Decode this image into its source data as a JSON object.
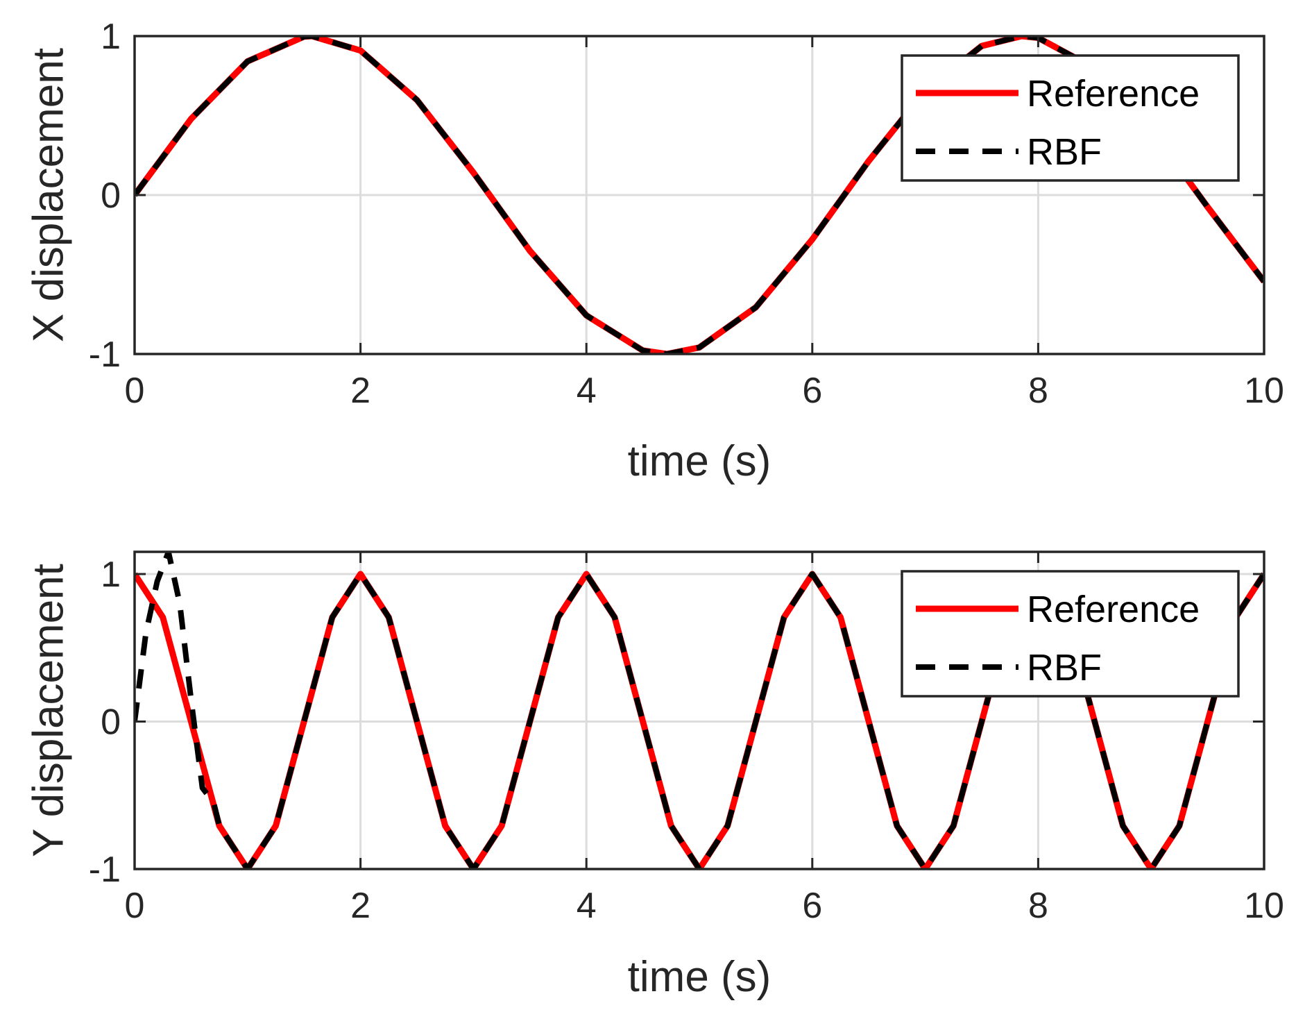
{
  "chart_data": [
    {
      "type": "line",
      "xlabel": "time (s)",
      "ylabel": "X displacement",
      "xlim": [
        0,
        10
      ],
      "ylim": [
        -1,
        1
      ],
      "xticks": [
        "0",
        "2",
        "4",
        "6",
        "8",
        "10"
      ],
      "yticks": [
        "-1",
        "0",
        "1"
      ],
      "grid": true,
      "legend": "top-right",
      "series": [
        {
          "name": "Reference",
          "color": "#ff0000",
          "style": "solid",
          "x": [
            0,
            0.5,
            1,
            1.5,
            1.571,
            2,
            2.5,
            3,
            3.5,
            4,
            4.5,
            4.712,
            5,
            5.5,
            6,
            6.5,
            7,
            7.5,
            7.854,
            8,
            8.5,
            9,
            9.5,
            10
          ],
          "y": [
            0,
            0.479,
            0.841,
            0.997,
            1,
            0.909,
            0.598,
            0.141,
            -0.351,
            -0.757,
            -0.978,
            -1,
            -0.959,
            -0.706,
            -0.279,
            0.215,
            0.657,
            0.938,
            1,
            0.989,
            0.798,
            0.412,
            -0.075,
            -0.544
          ]
        },
        {
          "name": "RBF",
          "color": "#000000",
          "style": "dashed",
          "x": [
            0,
            0.5,
            1,
            1.5,
            1.571,
            2,
            2.5,
            3,
            3.5,
            4,
            4.5,
            4.712,
            5,
            5.5,
            6,
            6.5,
            7,
            7.5,
            7.854,
            8,
            8.5,
            9,
            9.5,
            10
          ],
          "y": [
            0,
            0.479,
            0.841,
            0.997,
            1,
            0.909,
            0.598,
            0.141,
            -0.351,
            -0.757,
            -0.978,
            -1,
            -0.959,
            -0.706,
            -0.279,
            0.215,
            0.657,
            0.938,
            1,
            0.989,
            0.798,
            0.412,
            -0.075,
            -0.544
          ]
        }
      ]
    },
    {
      "type": "line",
      "xlabel": "time (s)",
      "ylabel": "Y displacement",
      "xlim": [
        0,
        10
      ],
      "ylim": [
        -1,
        1.15
      ],
      "xticks": [
        "0",
        "2",
        "4",
        "6",
        "8",
        "10"
      ],
      "yticks": [
        "-1",
        "0",
        "1"
      ],
      "grid": true,
      "legend": "top-right",
      "series": [
        {
          "name": "Reference",
          "color": "#ff0000",
          "style": "solid",
          "x": [
            0,
            0.25,
            0.5,
            0.75,
            1,
            1.25,
            1.5,
            1.75,
            2,
            2.25,
            2.5,
            2.75,
            3,
            3.25,
            3.5,
            3.75,
            4,
            4.25,
            4.5,
            4.75,
            5,
            5.25,
            5.5,
            5.75,
            6,
            6.25,
            6.5,
            6.75,
            7,
            7.25,
            7.5,
            7.75,
            8,
            8.25,
            8.5,
            8.75,
            9,
            9.25,
            9.5,
            9.75,
            10
          ],
          "y": [
            1,
            0.707,
            0,
            -0.707,
            -1,
            -0.707,
            0,
            0.707,
            1,
            0.707,
            0,
            -0.707,
            -1,
            -0.707,
            0,
            0.707,
            1,
            0.707,
            0,
            -0.707,
            -1,
            -0.707,
            0,
            0.707,
            1,
            0.707,
            0,
            -0.707,
            -1,
            -0.707,
            0,
            0.707,
            1,
            0.707,
            0,
            -0.707,
            -1,
            -0.707,
            0,
            0.707,
            1
          ]
        },
        {
          "name": "RBF",
          "color": "#000000",
          "style": "dashed",
          "x": [
            0,
            0.1,
            0.2,
            0.3,
            0.4,
            0.5,
            0.6,
            0.7,
            0.75,
            1,
            1.25,
            1.5,
            1.75,
            2,
            2.25,
            2.5,
            2.75,
            3,
            3.25,
            3.5,
            3.75,
            4,
            4.25,
            4.5,
            4.75,
            5,
            5.25,
            5.5,
            5.75,
            6,
            6.25,
            6.5,
            6.75,
            7,
            7.25,
            7.5,
            7.75,
            8,
            8.25,
            8.5,
            8.75,
            9,
            9.25,
            9.5,
            9.75,
            10
          ],
          "y": [
            0,
            0.6,
            0.95,
            1.15,
            0.8,
            0.15,
            -0.45,
            -0.55,
            -0.707,
            -1,
            -0.707,
            0,
            0.707,
            1,
            0.707,
            0,
            -0.707,
            -1,
            -0.707,
            0,
            0.707,
            1,
            0.707,
            0,
            -0.707,
            -1,
            -0.707,
            0,
            0.707,
            1,
            0.707,
            0,
            -0.707,
            -1,
            -0.707,
            0,
            0.707,
            1,
            0.707,
            0,
            -0.707,
            -1,
            -0.707,
            0,
            0.707,
            1
          ]
        }
      ]
    }
  ]
}
